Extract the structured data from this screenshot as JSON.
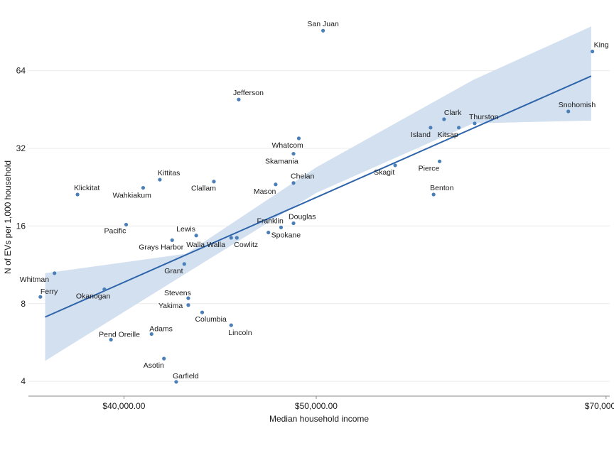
{
  "chart_data": {
    "type": "scatter",
    "title": "",
    "xlabel": "Median household income",
    "ylabel": "N of EVs per 1,000 household",
    "x_scale": "log",
    "y_scale": "log2",
    "xlim": [
      35800,
      70300
    ],
    "ylim": [
      3.55,
      106
    ],
    "x_ticks": [
      40000,
      50000,
      70000
    ],
    "x_tick_labels": [
      "$40,000.00",
      "$50,000.00",
      "$70,000.00"
    ],
    "y_ticks": [
      4,
      8,
      16,
      32,
      64
    ],
    "y_tick_labels": [
      "4",
      "8",
      "16",
      "32",
      "64"
    ],
    "grid": true,
    "colors": {
      "points": "#4a7fb8",
      "trend": "#2e64aa",
      "band": "#d3e0f0"
    },
    "trend": {
      "from": [
        36500,
        7.1
      ],
      "to": [
        68800,
        61
      ]
    },
    "confidence_band": {
      "upper": [
        [
          36500,
          10.5
        ],
        [
          43000,
          12.5
        ],
        [
          50000,
          27
        ],
        [
          60000,
          59
        ],
        [
          68800,
          95
        ]
      ],
      "lower": [
        [
          36500,
          4.8
        ],
        [
          43000,
          10.5
        ],
        [
          50000,
          21.5
        ],
        [
          60000,
          40
        ],
        [
          68800,
          41
        ]
      ]
    },
    "points": [
      {
        "name": "San Juan",
        "x": 50400,
        "y": 91.5
      },
      {
        "name": "King",
        "x": 68900,
        "y": 76
      },
      {
        "name": "Jefferson",
        "x": 45700,
        "y": 49.5
      },
      {
        "name": "Snohomish",
        "x": 67000,
        "y": 44.5
      },
      {
        "name": "Clark",
        "x": 58000,
        "y": 41.5
      },
      {
        "name": "Thurston",
        "x": 60100,
        "y": 40
      },
      {
        "name": "Island",
        "x": 57100,
        "y": 38.5
      },
      {
        "name": "Kitsap",
        "x": 59000,
        "y": 38.5
      },
      {
        "name": "Whatcom",
        "x": 49000,
        "y": 35
      },
      {
        "name": "Skamania",
        "x": 48700,
        "y": 30.5
      },
      {
        "name": "Pierce",
        "x": 57700,
        "y": 28.5
      },
      {
        "name": "Skagit",
        "x": 54800,
        "y": 27.5
      },
      {
        "name": "Kittitas",
        "x": 41700,
        "y": 24.2
      },
      {
        "name": "Clallam",
        "x": 44400,
        "y": 23.8
      },
      {
        "name": "Chelan",
        "x": 48700,
        "y": 23.5
      },
      {
        "name": "Mason",
        "x": 47700,
        "y": 23.2
      },
      {
        "name": "Wahkiakum",
        "x": 40900,
        "y": 22.5
      },
      {
        "name": "Klickitat",
        "x": 37900,
        "y": 21.2
      },
      {
        "name": "Benton",
        "x": 57300,
        "y": 21.2
      },
      {
        "name": "Douglas",
        "x": 48700,
        "y": 16.4
      },
      {
        "name": "Pacific",
        "x": 40100,
        "y": 16.2
      },
      {
        "name": "Franklin",
        "x": 48000,
        "y": 15.8
      },
      {
        "name": "Spokane",
        "x": 47300,
        "y": 15.1
      },
      {
        "name": "Lewis",
        "x": 43500,
        "y": 14.7
      },
      {
        "name": "Walla Walla",
        "x": 45300,
        "y": 14.4
      },
      {
        "name": "Cowlitz",
        "x": 45600,
        "y": 14.4
      },
      {
        "name": "Grays Harbor",
        "x": 42300,
        "y": 14.1
      },
      {
        "name": "Grant",
        "x": 42900,
        "y": 11.4
      },
      {
        "name": "Whitman",
        "x": 36900,
        "y": 10.5
      },
      {
        "name": "Okanogan",
        "x": 39100,
        "y": 9.1
      },
      {
        "name": "Ferry",
        "x": 36300,
        "y": 8.5
      },
      {
        "name": "Stevens",
        "x": 43100,
        "y": 8.4
      },
      {
        "name": "Yakima",
        "x": 43100,
        "y": 7.9
      },
      {
        "name": "Columbia",
        "x": 43800,
        "y": 7.4
      },
      {
        "name": "Lincoln",
        "x": 45300,
        "y": 6.6
      },
      {
        "name": "Adams",
        "x": 41300,
        "y": 6.1
      },
      {
        "name": "Pend Oreille",
        "x": 39400,
        "y": 5.8
      },
      {
        "name": "Asotin",
        "x": 41900,
        "y": 4.9
      },
      {
        "name": "Garfield",
        "x": 42500,
        "y": 3.98
      }
    ]
  }
}
